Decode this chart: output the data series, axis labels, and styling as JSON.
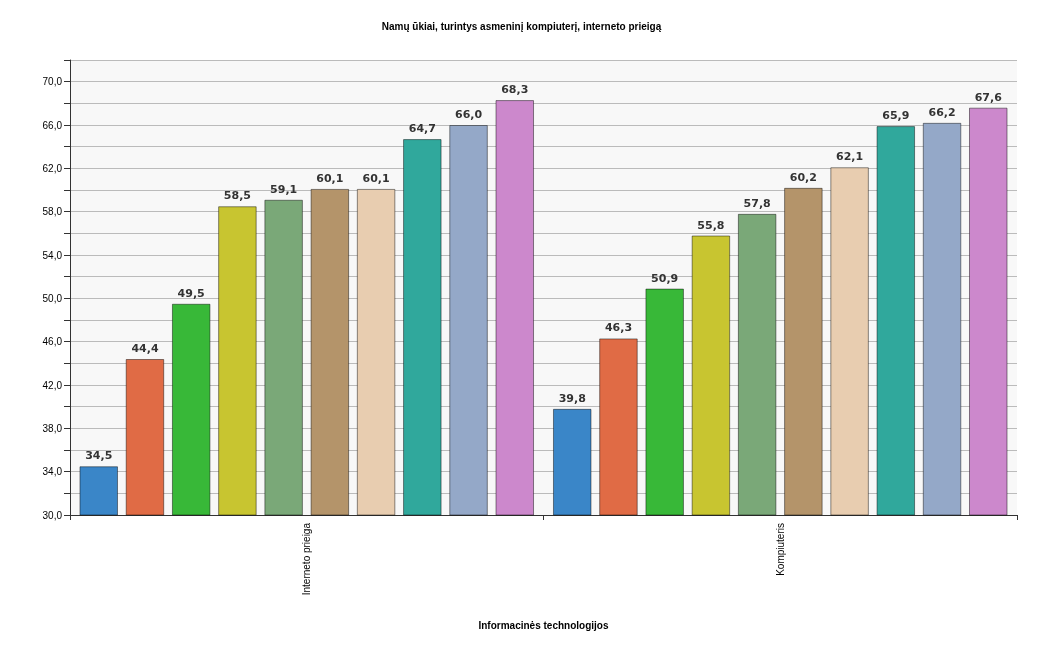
{
  "chart_data": {
    "type": "bar",
    "title": "Namų ūkiai, turintys asmeninį kompiuterį, interneto prieigą",
    "xlabel": "Informacinės technologijos",
    "categories": [
      "Interneto prieiga",
      "Kompiuteris"
    ],
    "series": [
      {
        "color": "#3a86c8",
        "values": [
          34.5,
          39.8
        ],
        "value_labels": [
          "34,5",
          "39,8"
        ]
      },
      {
        "color": "#e06b45",
        "values": [
          44.4,
          46.3
        ],
        "value_labels": [
          "44,4",
          "46,3"
        ]
      },
      {
        "color": "#38b838",
        "values": [
          49.5,
          50.9
        ],
        "value_labels": [
          "49,5",
          "50,9"
        ]
      },
      {
        "color": "#c8c530",
        "values": [
          58.5,
          55.8
        ],
        "value_labels": [
          "58,5",
          "55,8"
        ]
      },
      {
        "color": "#7aa878",
        "values": [
          59.1,
          57.8
        ],
        "value_labels": [
          "59,1",
          "57,8"
        ]
      },
      {
        "color": "#b4946a",
        "values": [
          60.1,
          60.2
        ],
        "value_labels": [
          "60,1",
          "60,2"
        ]
      },
      {
        "color": "#e8cdb0",
        "values": [
          60.1,
          62.1
        ],
        "value_labels": [
          "60,1",
          "62,1"
        ]
      },
      {
        "color": "#30a89c",
        "values": [
          64.7,
          65.9
        ],
        "value_labels": [
          "64,7",
          "65,9"
        ]
      },
      {
        "color": "#94a8c8",
        "values": [
          66.0,
          66.2
        ],
        "value_labels": [
          "66,0",
          "66,2"
        ]
      },
      {
        "color": "#cc88cc",
        "values": [
          68.3,
          67.6
        ],
        "value_labels": [
          "68,3",
          "67,6"
        ]
      }
    ],
    "ylim": [
      30,
      72
    ],
    "yticks": [
      {
        "value": 30,
        "label": "30,0"
      },
      {
        "value": 32,
        "label": null
      },
      {
        "value": 34,
        "label": "34,0"
      },
      {
        "value": 36,
        "label": null
      },
      {
        "value": 38,
        "label": "38,0"
      },
      {
        "value": 40,
        "label": null
      },
      {
        "value": 42,
        "label": "42,0"
      },
      {
        "value": 44,
        "label": null
      },
      {
        "value": 46,
        "label": "46,0"
      },
      {
        "value": 48,
        "label": null
      },
      {
        "value": 50,
        "label": "50,0"
      },
      {
        "value": 52,
        "label": null
      },
      {
        "value": 54,
        "label": "54,0"
      },
      {
        "value": 56,
        "label": null
      },
      {
        "value": 58,
        "label": "58,0"
      },
      {
        "value": 60,
        "label": null
      },
      {
        "value": 62,
        "label": "62,0"
      },
      {
        "value": 64,
        "label": null
      },
      {
        "value": 66,
        "label": "66,0"
      },
      {
        "value": 68,
        "label": null
      },
      {
        "value": 70,
        "label": "70,0"
      },
      {
        "value": 72,
        "label": null
      }
    ],
    "grid": "y"
  }
}
